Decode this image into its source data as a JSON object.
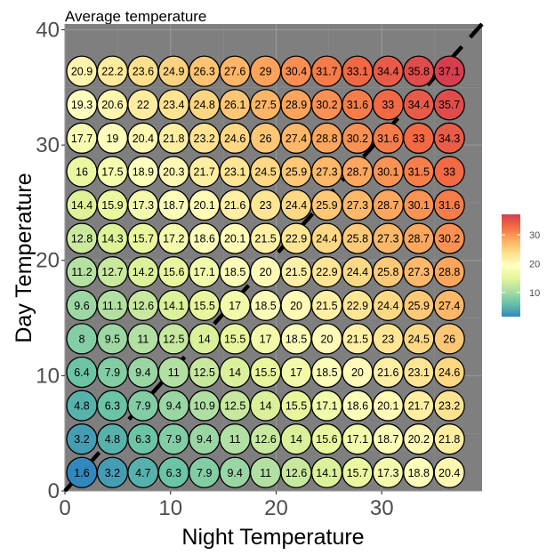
{
  "chart_data": {
    "type": "scatter",
    "title": "Average temperature",
    "xlabel": "Night Temperature",
    "ylabel": "Day Temperature",
    "xlim": [
      0,
      39.5
    ],
    "ylim": [
      0,
      40.5
    ],
    "x_ticks": [
      0,
      10,
      20,
      30
    ],
    "y_ticks": [
      0,
      10,
      20,
      30,
      40
    ],
    "x_tick_labels": [
      "0",
      "10",
      "20",
      "30"
    ],
    "y_tick_labels": [
      "0",
      "10",
      "20",
      "30",
      "40"
    ],
    "grid": true,
    "panel_background": "#7f7f7f",
    "diagonal_line": {
      "from": [
        0,
        0
      ],
      "to": [
        39.5,
        40.5
      ],
      "color": "#000000",
      "style": "dashed"
    },
    "night_values": [
      1.6,
      4.5,
      7.4,
      10.3,
      13.2,
      16.1,
      19.0,
      21.9,
      24.8,
      27.7,
      30.6,
      33.5,
      36.4
    ],
    "rows": [
      {
        "day": 1.6,
        "labels": [
          "1.6",
          "3.2",
          "4.7",
          "6.3",
          "7.9",
          "9.4",
          "11",
          "12.6",
          "14.1",
          "15.7",
          "17.3",
          "18.8",
          "20.4"
        ]
      },
      {
        "day": 4.5,
        "labels": [
          "3.2",
          "4.8",
          "6.3",
          "7.9",
          "9.4",
          "11",
          "12.6",
          "14",
          "15.6",
          "17.1",
          "18.7",
          "20.2",
          "21.8"
        ]
      },
      {
        "day": 7.4,
        "labels": [
          "4.8",
          "6.3",
          "7.9",
          "9.4",
          "10.9",
          "12.5",
          "14",
          "15.5",
          "17.1",
          "18.6",
          "20.1",
          "21.7",
          "23.2"
        ]
      },
      {
        "day": 10.3,
        "labels": [
          "6.4",
          "7.9",
          "9.4",
          "11",
          "12.5",
          "14",
          "15.5",
          "17",
          "18.5",
          "20",
          "21.6",
          "23.1",
          "24.6"
        ]
      },
      {
        "day": 13.2,
        "labels": [
          "8",
          "9.5",
          "11",
          "12.5",
          "14",
          "15.5",
          "17",
          "18.5",
          "20",
          "21.5",
          "23",
          "24.5",
          "26"
        ]
      },
      {
        "day": 16.1,
        "labels": [
          "9.6",
          "11.1",
          "12.6",
          "14.1",
          "15.5",
          "17",
          "18.5",
          "20",
          "21.5",
          "22.9",
          "24.4",
          "25.9",
          "27.4"
        ]
      },
      {
        "day": 19.0,
        "labels": [
          "11.2",
          "12.7",
          "14.2",
          "15.6",
          "17.1",
          "18.5",
          "20",
          "21.5",
          "22.9",
          "24.4",
          "25.8",
          "27.3",
          "28.8"
        ]
      },
      {
        "day": 21.9,
        "labels": [
          "12.8",
          "14.3",
          "15.7",
          "17.2",
          "18.6",
          "20.1",
          "21.5",
          "22.9",
          "24.4",
          "25.8",
          "27.3",
          "28.7",
          "30.2"
        ]
      },
      {
        "day": 24.8,
        "labels": [
          "14.4",
          "15.9",
          "17.3",
          "18.7",
          "20.1",
          "21.6",
          "23",
          "24.4",
          "25.9",
          "27.3",
          "28.7",
          "30.1",
          "31.6"
        ]
      },
      {
        "day": 27.7,
        "labels": [
          "16",
          "17.5",
          "18.9",
          "20.3",
          "21.7",
          "23.1",
          "24.5",
          "25.9",
          "27.3",
          "28.7",
          "30.1",
          "31.5",
          "33"
        ]
      },
      {
        "day": 30.6,
        "labels": [
          "17.7",
          "19",
          "20.4",
          "21.8",
          "23.2",
          "24.6",
          "26",
          "27.4",
          "28.8",
          "30.2",
          "31.6",
          "33",
          "34.3"
        ]
      },
      {
        "day": 33.5,
        "labels": [
          "19.3",
          "20.6",
          "22",
          "23.4",
          "24.8",
          "26.1",
          "27.5",
          "28.9",
          "30.2",
          "31.6",
          "33",
          "34.4",
          "35.7"
        ]
      },
      {
        "day": 36.4,
        "labels": [
          "20.9",
          "22.2",
          "23.6",
          "24.9",
          "26.3",
          "27.6",
          "29",
          "30.4",
          "31.7",
          "33.1",
          "34.4",
          "35.8",
          "37.1"
        ]
      }
    ],
    "color_scale": {
      "palette": "Spectral (reversed)",
      "min": 1.6,
      "max": 37.1,
      "stops": [
        "#3288bd",
        "#66c2a5",
        "#abdda4",
        "#e6f598",
        "#ffffbf",
        "#fee08b",
        "#fdae61",
        "#f46d43",
        "#d53e4f"
      ],
      "legend_ticks": [
        "10",
        "20",
        "30"
      ],
      "legend_tick_values": [
        10,
        20,
        30
      ],
      "legend_placement": "right"
    }
  }
}
